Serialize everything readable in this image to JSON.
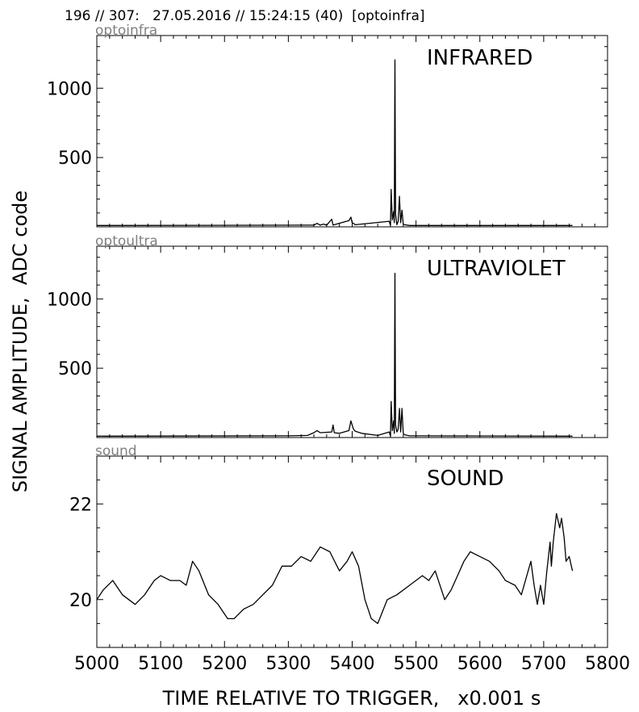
{
  "header": "196 // 307:   27.05.2016 // 15:24:15 (40)  [optoinfra]",
  "ylabel": "SIGNAL AMPLITUDE,  ADC code",
  "xlabel": "TIME RELATIVE TO TRIGGER,   x0.001 s",
  "xticks": [
    "5000",
    "5100",
    "5200",
    "5300",
    "5400",
    "5500",
    "5600",
    "5700",
    "5800"
  ],
  "chart_data": [
    {
      "type": "line",
      "source": "optoinfra",
      "title": "INFRARED",
      "xlim": [
        5000,
        5800
      ],
      "ylim": [
        0,
        1380
      ],
      "yticks": [
        500,
        1000
      ],
      "ytick_labels": [
        "500",
        "1000"
      ],
      "series": [
        {
          "x": [
            5000,
            5340,
            5345,
            5350,
            5355,
            5360,
            5368,
            5370,
            5372,
            5395,
            5398,
            5400,
            5405,
            5458,
            5460,
            5461,
            5463,
            5465,
            5466,
            5467,
            5468,
            5470,
            5472,
            5474,
            5476,
            5478,
            5480,
            5482,
            5490,
            5745
          ],
          "y": [
            10,
            12,
            25,
            12,
            20,
            12,
            55,
            12,
            15,
            45,
            70,
            30,
            15,
            40,
            10,
            270,
            50,
            110,
            30,
            1205,
            90,
            15,
            40,
            220,
            30,
            120,
            20,
            15,
            10,
            10
          ]
        }
      ]
    },
    {
      "type": "line",
      "source": "optoultra",
      "title": "ULTRAVIOLET",
      "xlim": [
        5000,
        5800
      ],
      "ylim": [
        0,
        1380
      ],
      "yticks": [
        500,
        1000
      ],
      "ytick_labels": [
        "500",
        "1000"
      ],
      "series": [
        {
          "x": [
            5000,
            5300,
            5330,
            5340,
            5345,
            5350,
            5368,
            5370,
            5372,
            5380,
            5395,
            5398,
            5402,
            5405,
            5415,
            5440,
            5458,
            5460,
            5461,
            5463,
            5465,
            5466,
            5467,
            5468,
            5470,
            5472,
            5474,
            5476,
            5478,
            5480,
            5482,
            5490,
            5745
          ],
          "y": [
            10,
            12,
            15,
            35,
            50,
            35,
            40,
            90,
            35,
            30,
            50,
            120,
            60,
            45,
            30,
            15,
            40,
            10,
            260,
            50,
            120,
            30,
            1185,
            90,
            40,
            60,
            210,
            40,
            210,
            30,
            20,
            12,
            10
          ]
        }
      ]
    },
    {
      "type": "line",
      "source": "sound",
      "title": "SOUND",
      "xlim": [
        5000,
        5800
      ],
      "ylim": [
        19,
        23
      ],
      "yticks": [
        20,
        22
      ],
      "ytick_labels": [
        "20",
        "22"
      ],
      "series": [
        {
          "x": [
            5000,
            5010,
            5025,
            5040,
            5060,
            5075,
            5090,
            5100,
            5115,
            5130,
            5140,
            5150,
            5160,
            5175,
            5190,
            5205,
            5215,
            5230,
            5245,
            5260,
            5275,
            5290,
            5305,
            5320,
            5335,
            5350,
            5365,
            5380,
            5392,
            5400,
            5410,
            5420,
            5430,
            5440,
            5455,
            5470,
            5490,
            5510,
            5520,
            5530,
            5545,
            5555,
            5565,
            5575,
            5585,
            5600,
            5615,
            5630,
            5640,
            5655,
            5665,
            5680,
            5685,
            5690,
            5695,
            5700,
            5705,
            5710,
            5712,
            5715,
            5720,
            5725,
            5728,
            5732,
            5735,
            5740,
            5745
          ],
          "y": [
            20.0,
            20.2,
            20.4,
            20.1,
            19.9,
            20.1,
            20.4,
            20.5,
            20.4,
            20.4,
            20.3,
            20.8,
            20.6,
            20.1,
            19.9,
            19.6,
            19.6,
            19.8,
            19.9,
            20.1,
            20.3,
            20.7,
            20.7,
            20.9,
            20.8,
            21.1,
            21.0,
            20.6,
            20.8,
            21.0,
            20.7,
            20.0,
            19.6,
            19.5,
            20.0,
            20.1,
            20.3,
            20.5,
            20.4,
            20.6,
            20.0,
            20.2,
            20.5,
            20.8,
            21.0,
            20.9,
            20.8,
            20.6,
            20.4,
            20.3,
            20.1,
            20.8,
            20.3,
            19.9,
            20.3,
            19.9,
            20.6,
            21.2,
            20.7,
            21.2,
            21.8,
            21.5,
            21.7,
            21.3,
            20.8,
            20.9,
            20.6
          ]
        }
      ]
    }
  ]
}
